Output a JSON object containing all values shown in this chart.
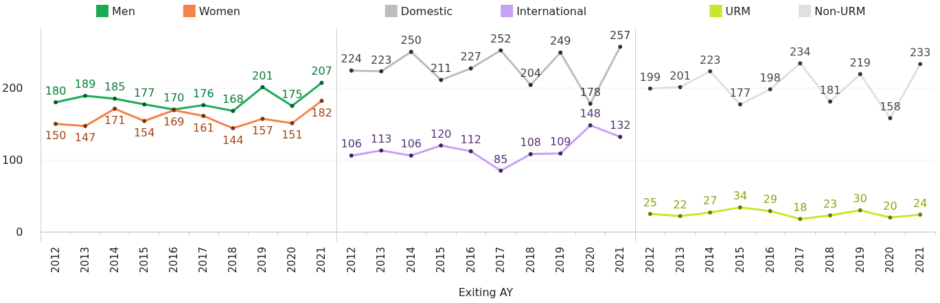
{
  "chart_data": [
    {
      "type": "line",
      "categories": [
        "2012",
        "2013",
        "2014",
        "2015",
        "2016",
        "2017",
        "2018",
        "2019",
        "2020",
        "2021"
      ],
      "ylim": [
        -13,
        282
      ],
      "yticks": [
        0,
        100,
        200
      ],
      "grid": "y",
      "legend": "top",
      "marker": "circle",
      "data_labels": true,
      "series": [
        {
          "name": "Men",
          "color": "#1aaa55",
          "values": [
            180,
            189,
            185,
            177,
            170,
            176,
            168,
            201,
            175,
            207
          ]
        },
        {
          "name": "Women",
          "color": "#f4834a",
          "values": [
            150,
            147,
            171,
            154,
            169,
            161,
            144,
            157,
            151,
            182
          ]
        }
      ]
    },
    {
      "type": "line",
      "categories": [
        "2012",
        "2013",
        "2014",
        "2015",
        "2016",
        "2017",
        "2018",
        "2019",
        "2020",
        "2021"
      ],
      "xlabel": "Exiting AY",
      "ylim": [
        -13,
        282
      ],
      "yticks": [
        0,
        100,
        200
      ],
      "tick_labels": "x",
      "grid": "y",
      "legend": "top",
      "marker": "circle",
      "data_labels": true,
      "series": [
        {
          "name": "Domestic",
          "color": "#bdbdbd",
          "values": [
            224,
            223,
            250,
            211,
            227,
            252,
            204,
            249,
            178,
            257
          ]
        },
        {
          "name": "International",
          "color": "#c9a0f5",
          "values": [
            106,
            113,
            106,
            120,
            112,
            85,
            108,
            109,
            148,
            132
          ]
        }
      ]
    },
    {
      "type": "line",
      "categories": [
        "2012",
        "2013",
        "2014",
        "2015",
        "2016",
        "2017",
        "2018",
        "2019",
        "2020",
        "2021"
      ],
      "ylim": [
        -13,
        282
      ],
      "yticks": [
        0,
        100,
        200
      ],
      "tick_labels": "x",
      "grid": "y",
      "legend": "top",
      "marker": "circle",
      "data_labels": true,
      "series": [
        {
          "name": "URM",
          "color": "#c8e62a",
          "values": [
            25,
            22,
            27,
            34,
            29,
            18,
            23,
            30,
            20,
            24
          ]
        },
        {
          "name": "Non-URM",
          "color": "#e0e0e0",
          "values": [
            199,
            201,
            223,
            177,
            198,
            234,
            181,
            219,
            158,
            233
          ]
        }
      ]
    }
  ]
}
